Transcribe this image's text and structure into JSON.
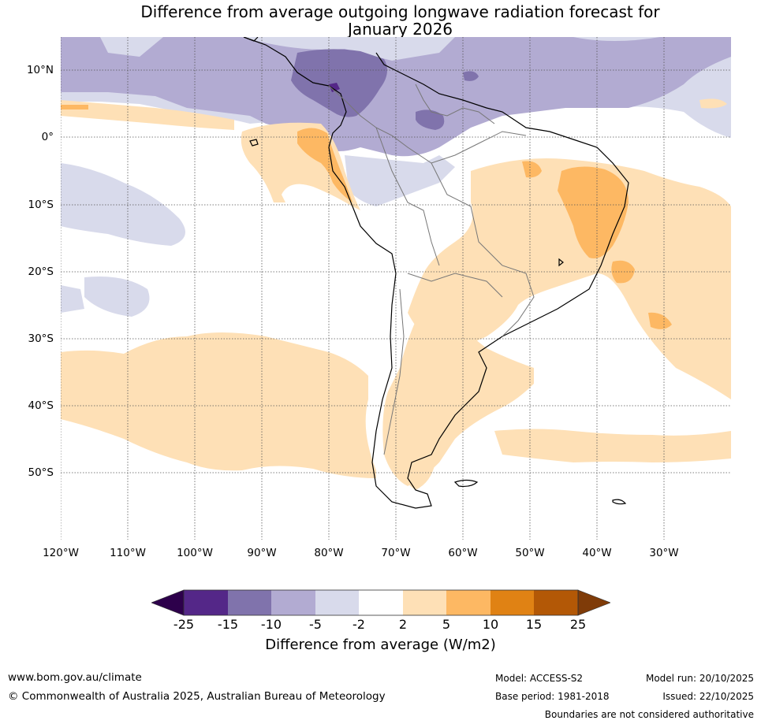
{
  "title": {
    "line1": "Difference from average outgoing longwave radiation forecast for",
    "line2": "January 2026"
  },
  "map": {
    "lat_labels": [
      "10°N",
      "0°",
      "10°S",
      "20°S",
      "30°S",
      "40°S",
      "50°S"
    ],
    "lon_labels": [
      "120°W",
      "110°W",
      "100°W",
      "90°W",
      "80°W",
      "70°W",
      "60°W",
      "50°W",
      "40°W",
      "30°W"
    ],
    "palette": {
      "neg25": "#2d004b",
      "neg15": "#542788",
      "neg10": "#8073ac",
      "neg5": "#b2abd2",
      "neg2": "#d8daeb",
      "zero": "#ffffff",
      "pos2": "#fee0b6",
      "pos5": "#fdb863",
      "pos10": "#e08214",
      "pos15": "#b35806",
      "pos25": "#7f3b08",
      "land": "#000000",
      "borders": "#777777"
    }
  },
  "colorbar": {
    "ticks": [
      "-25",
      "-15",
      "-10",
      "-5",
      "-2",
      "2",
      "5",
      "10",
      "15",
      "25"
    ],
    "label": "Difference from average (W/m2)"
  },
  "footer": {
    "website": "www.bom.gov.au/climate",
    "copyright": "© Commonwealth of Australia 2025, Australian Bureau of Meteorology",
    "model": "Model: ACCESS-S2",
    "base_period": "Base period: 1981-2018",
    "model_run": "Model run: 20/10/2025",
    "issued": "Issued: 22/10/2025",
    "disclaimer": "Boundaries are not considered authoritative"
  }
}
